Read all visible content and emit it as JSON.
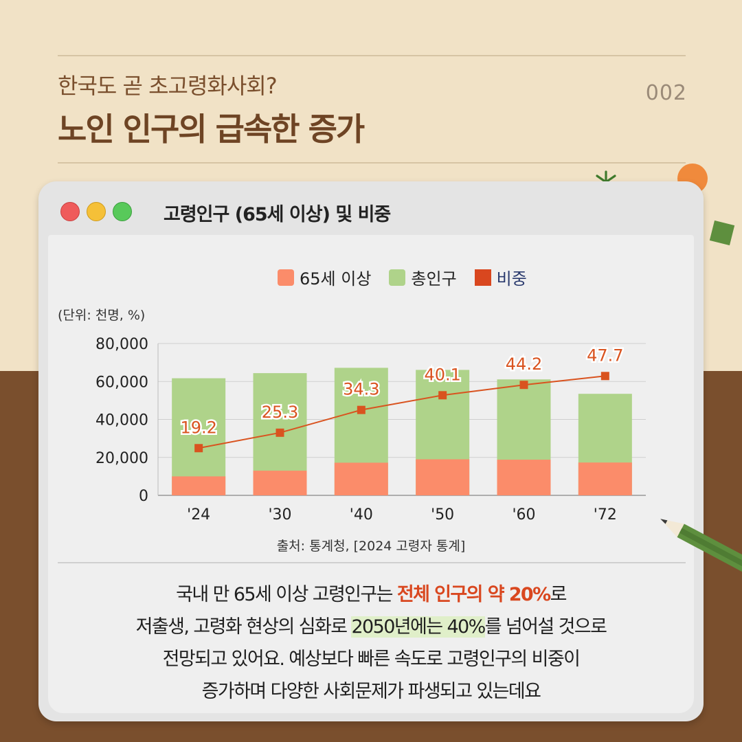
{
  "header": {
    "subtitle": "한국도 곧 초고령화사회?",
    "title": "노인 인구의 급속한 증가",
    "page_number": "002"
  },
  "window": {
    "title": "고령인구 (65세 이상) 및 비중",
    "controls": [
      "close",
      "minimize",
      "maximize"
    ]
  },
  "chart_data": {
    "type": "bar",
    "stacked": true,
    "unit_label": "(단위: 천명, %)",
    "categories": [
      "'24",
      "'30",
      "'40",
      "'50",
      "'60",
      "'72"
    ],
    "series": [
      {
        "name": "65세 이상",
        "type": "bar",
        "color": "#fb8c6a",
        "values": [
          10000,
          13000,
          17200,
          19000,
          18800,
          17300
        ]
      },
      {
        "name": "총인구",
        "type": "bar",
        "color": "#afd38a",
        "values": [
          61700,
          64400,
          67200,
          66100,
          61100,
          53500
        ]
      },
      {
        "name": "비중",
        "type": "line",
        "color": "#d9531f",
        "axis": "right",
        "values": [
          19.2,
          25.3,
          34.3,
          40.1,
          44.2,
          47.7
        ]
      }
    ],
    "y_ticks": [
      "0",
      "20,000",
      "40,000",
      "60,000",
      "80,000"
    ],
    "ylim": [
      0,
      80000
    ],
    "grid": true,
    "legend": "top-center"
  },
  "source": "출처: 통계청, [2024 고령자 통계]",
  "body": {
    "line1_a": "국내 만 65세 이상 고령인구는 ",
    "line1_hl": "전체 인구의 약 20%",
    "line1_b": "로",
    "line2_a": "저출생, 고령화 현상의 심화로 ",
    "line2_hl": "2050년에는 40%",
    "line2_b": "를 넘어설 것으로",
    "line3": "전망되고 있어요. 예상보다 빠른 속도로 고령인구의 비중이",
    "line4": "증가하며 다양한 사회문제가 파생되고 있는데요"
  },
  "colors": {
    "accent": "#d9471f",
    "brown": "#7a4f2d",
    "beige": "#f1e2c6"
  }
}
